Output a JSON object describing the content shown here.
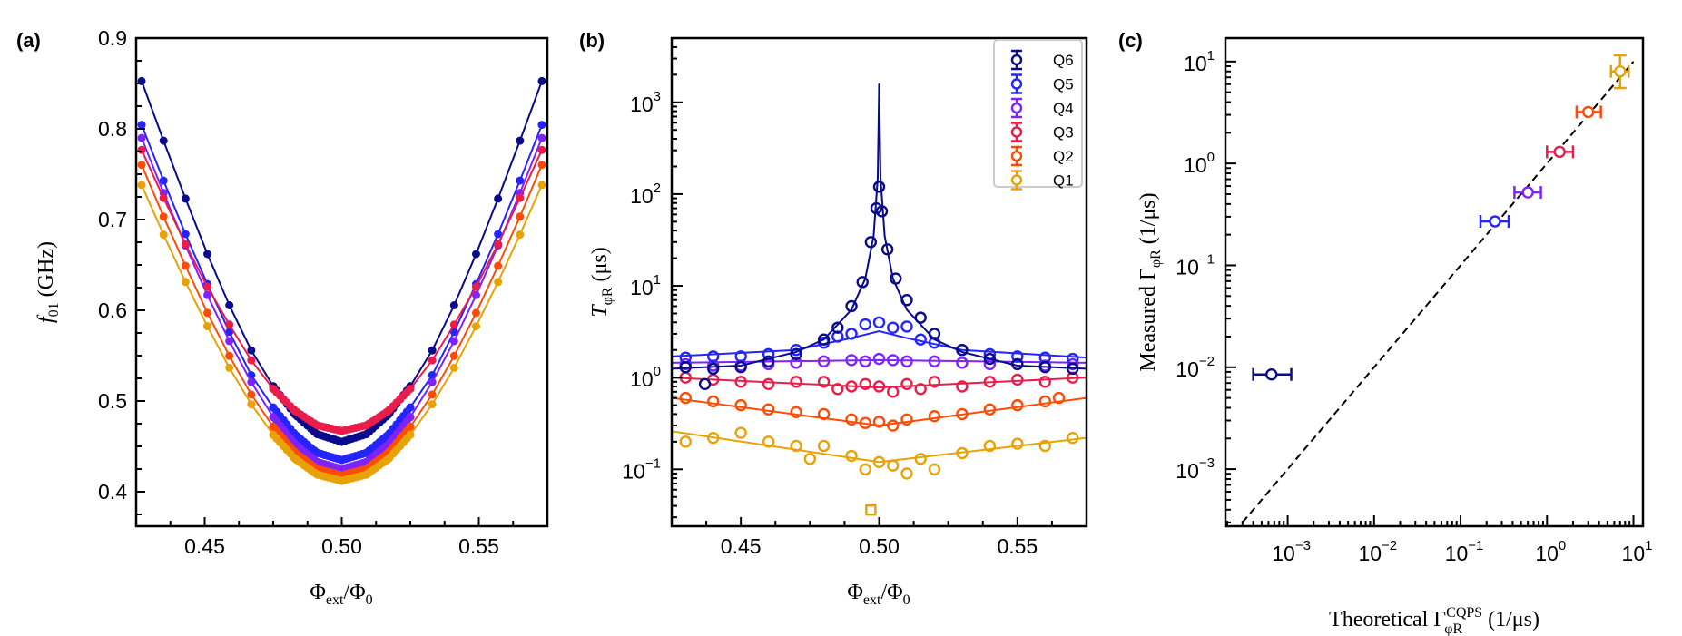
{
  "chart_data": [
    {
      "panel_label": "(a)",
      "type": "scatter",
      "marker": "filled-circle-with-fit-line",
      "xlabel": {
        "main": "Φ",
        "sub": "ext",
        "rest": "/Φ",
        "sub2": "0"
      },
      "ylabel": {
        "main": "f",
        "sub": "01",
        "rest": " (GHz)"
      },
      "xlim": [
        0.425,
        0.575
      ],
      "ylim": [
        0.362,
        0.9
      ],
      "xticks": [
        "0.45",
        "0.50",
        "0.55"
      ],
      "yticks": [
        "0.4",
        "0.5",
        "0.6",
        "0.7",
        "0.8",
        "0.9"
      ],
      "x": [
        0.427,
        0.435,
        0.443,
        0.451,
        0.459,
        0.467,
        0.475,
        0.483,
        0.491,
        0.5,
        0.509,
        0.517,
        0.525,
        0.533,
        0.541,
        0.549,
        0.557,
        0.565,
        0.573
      ],
      "series": [
        {
          "name": "Q6",
          "values": [
            0.8526,
            0.7869,
            0.7231,
            0.662,
            0.6055,
            0.5558,
            0.5163,
            0.485,
            0.4635,
            0.455,
            0.4635,
            0.485,
            0.5163,
            0.5558,
            0.6055,
            0.662,
            0.7231,
            0.7869,
            0.8526
          ]
        },
        {
          "name": "Q5",
          "values": [
            0.8044,
            0.7429,
            0.684,
            0.6289,
            0.5762,
            0.5285,
            0.4929,
            0.463,
            0.4429,
            0.435,
            0.4429,
            0.463,
            0.4929,
            0.5285,
            0.5762,
            0.6289,
            0.684,
            0.7429,
            0.8044
          ]
        },
        {
          "name": "Q4",
          "values": [
            0.7899,
            0.7294,
            0.6714,
            0.6167,
            0.566,
            0.5208,
            0.4823,
            0.4523,
            0.4328,
            0.425,
            0.4328,
            0.4523,
            0.4823,
            0.5208,
            0.566,
            0.6167,
            0.6714,
            0.7294,
            0.7899
          ]
        },
        {
          "name": "Q3",
          "values": [
            0.7767,
            0.7238,
            0.6729,
            0.6258,
            0.5842,
            0.5449,
            0.5134,
            0.4891,
            0.4732,
            0.467,
            0.4732,
            0.4891,
            0.5134,
            0.5449,
            0.5842,
            0.6258,
            0.6729,
            0.7238,
            0.7767
          ]
        },
        {
          "name": "Q2",
          "values": [
            0.7603,
            0.7032,
            0.649,
            0.5971,
            0.5497,
            0.5071,
            0.4716,
            0.443,
            0.4252,
            0.418,
            0.4252,
            0.443,
            0.4716,
            0.5071,
            0.5497,
            0.5971,
            0.649,
            0.7032,
            0.7603
          ]
        },
        {
          "name": "Q1",
          "values": [
            0.7381,
            0.6834,
            0.6312,
            0.5824,
            0.5366,
            0.4964,
            0.4627,
            0.4362,
            0.4189,
            0.412,
            0.4189,
            0.4362,
            0.4627,
            0.4964,
            0.5366,
            0.5824,
            0.6312,
            0.6834,
            0.7381
          ]
        }
      ]
    },
    {
      "panel_label": "(b)",
      "type": "scatter",
      "marker": "open-circle-with-fit-line",
      "yscale": "log",
      "xlabel": {
        "main": "Φ",
        "sub": "ext",
        "rest": "/Φ",
        "sub2": "0"
      },
      "ylabel": {
        "main": "T",
        "sub": "φR",
        "rest": " (μs)"
      },
      "xlim": [
        0.425,
        0.575
      ],
      "ylim_log10": [
        -1.62,
        3.7
      ],
      "xticks": [
        "0.45",
        "0.50",
        "0.55"
      ],
      "yticks_exp": [
        "-1",
        "0",
        "1",
        "2",
        "3"
      ],
      "legend": {
        "placement": "top-right",
        "entries": [
          "Q6",
          "Q5",
          "Q4",
          "Q3",
          "Q2",
          "Q1"
        ]
      },
      "series": [
        {
          "name": "Q6",
          "points": [
            [
              0.43,
              1.3
            ],
            [
              0.437,
              0.85
            ],
            [
              0.44,
              1.25
            ],
            [
              0.45,
              1.3
            ],
            [
              0.46,
              1.5
            ],
            [
              0.47,
              1.8
            ],
            [
              0.48,
              2.6
            ],
            [
              0.485,
              3.5
            ],
            [
              0.49,
              6
            ],
            [
              0.494,
              11
            ],
            [
              0.497,
              30
            ],
            [
              0.499,
              70
            ],
            [
              0.5,
              120
            ],
            [
              0.501,
              65
            ],
            [
              0.503,
              25
            ],
            [
              0.506,
              12
            ],
            [
              0.51,
              7
            ],
            [
              0.515,
              4.5
            ],
            [
              0.52,
              3
            ],
            [
              0.53,
              2
            ],
            [
              0.54,
              1.6
            ],
            [
              0.55,
              1.4
            ],
            [
              0.56,
              1.3
            ],
            [
              0.57,
              1.25
            ]
          ],
          "fit": [
            [
              0.425,
              1.25
            ],
            [
              0.45,
              1.35
            ],
            [
              0.47,
              1.9
            ],
            [
              0.48,
              2.6
            ],
            [
              0.49,
              5.5
            ],
            [
              0.495,
              12
            ],
            [
              0.498,
              35
            ],
            [
              0.4995,
              150
            ],
            [
              0.5,
              1600
            ],
            [
              0.5005,
              150
            ],
            [
              0.502,
              35
            ],
            [
              0.505,
              12
            ],
            [
              0.51,
              5.5
            ],
            [
              0.52,
              2.6
            ],
            [
              0.53,
              1.9
            ],
            [
              0.55,
              1.35
            ],
            [
              0.575,
              1.25
            ]
          ]
        },
        {
          "name": "Q5",
          "points": [
            [
              0.43,
              1.65
            ],
            [
              0.44,
              1.7
            ],
            [
              0.45,
              1.7
            ],
            [
              0.46,
              1.8
            ],
            [
              0.47,
              2.0
            ],
            [
              0.48,
              2.4
            ],
            [
              0.485,
              2.8
            ],
            [
              0.49,
              3.0
            ],
            [
              0.495,
              3.8
            ],
            [
              0.5,
              4.0
            ],
            [
              0.505,
              3.5
            ],
            [
              0.51,
              3.6
            ],
            [
              0.515,
              2.6
            ],
            [
              0.52,
              2.4
            ],
            [
              0.53,
              2.0
            ],
            [
              0.54,
              1.8
            ],
            [
              0.55,
              1.7
            ],
            [
              0.56,
              1.65
            ],
            [
              0.57,
              1.6
            ]
          ],
          "fit": [
            [
              0.425,
              1.7
            ],
            [
              0.47,
              2.0
            ],
            [
              0.49,
              2.7
            ],
            [
              0.5,
              3.2
            ],
            [
              0.51,
              2.7
            ],
            [
              0.53,
              2.0
            ],
            [
              0.575,
              1.65
            ]
          ]
        },
        {
          "name": "Q4",
          "points": [
            [
              0.43,
              1.4
            ],
            [
              0.44,
              1.35
            ],
            [
              0.45,
              1.35
            ],
            [
              0.46,
              1.4
            ],
            [
              0.47,
              1.45
            ],
            [
              0.48,
              1.5
            ],
            [
              0.49,
              1.55
            ],
            [
              0.495,
              1.5
            ],
            [
              0.5,
              1.6
            ],
            [
              0.505,
              1.55
            ],
            [
              0.51,
              1.5
            ],
            [
              0.52,
              1.5
            ],
            [
              0.53,
              1.45
            ],
            [
              0.54,
              1.4
            ],
            [
              0.55,
              1.4
            ],
            [
              0.56,
              1.35
            ],
            [
              0.57,
              1.4
            ]
          ],
          "fit": [
            [
              0.425,
              1.45
            ],
            [
              0.5,
              1.55
            ],
            [
              0.575,
              1.45
            ]
          ]
        },
        {
          "name": "Q3",
          "points": [
            [
              0.43,
              1.0
            ],
            [
              0.44,
              0.95
            ],
            [
              0.45,
              0.9
            ],
            [
              0.46,
              0.85
            ],
            [
              0.47,
              0.9
            ],
            [
              0.48,
              0.9
            ],
            [
              0.485,
              0.75
            ],
            [
              0.49,
              0.8
            ],
            [
              0.495,
              0.85
            ],
            [
              0.5,
              0.8
            ],
            [
              0.505,
              0.7
            ],
            [
              0.51,
              0.85
            ],
            [
              0.515,
              0.75
            ],
            [
              0.52,
              0.9
            ],
            [
              0.53,
              0.8
            ],
            [
              0.54,
              0.9
            ],
            [
              0.55,
              0.95
            ],
            [
              0.56,
              0.9
            ],
            [
              0.57,
              1.0
            ]
          ],
          "fit": [
            [
              0.425,
              1.0
            ],
            [
              0.5,
              0.78
            ],
            [
              0.575,
              1.0
            ]
          ]
        },
        {
          "name": "Q2",
          "points": [
            [
              0.43,
              0.6
            ],
            [
              0.44,
              0.55
            ],
            [
              0.45,
              0.5
            ],
            [
              0.46,
              0.45
            ],
            [
              0.47,
              0.42
            ],
            [
              0.48,
              0.4
            ],
            [
              0.49,
              0.35
            ],
            [
              0.495,
              0.32
            ],
            [
              0.5,
              0.33
            ],
            [
              0.505,
              0.3
            ],
            [
              0.51,
              0.35
            ],
            [
              0.52,
              0.38
            ],
            [
              0.53,
              0.4
            ],
            [
              0.54,
              0.45
            ],
            [
              0.55,
              0.5
            ],
            [
              0.56,
              0.55
            ],
            [
              0.565,
              0.6
            ]
          ],
          "fit": [
            [
              0.425,
              0.6
            ],
            [
              0.5,
              0.3
            ],
            [
              0.575,
              0.6
            ]
          ]
        },
        {
          "name": "Q1",
          "points": [
            [
              0.43,
              0.2
            ],
            [
              0.44,
              0.22
            ],
            [
              0.45,
              0.25
            ],
            [
              0.46,
              0.2
            ],
            [
              0.47,
              0.18
            ],
            [
              0.475,
              0.13
            ],
            [
              0.48,
              0.18
            ],
            [
              0.49,
              0.14
            ],
            [
              0.495,
              0.1
            ],
            [
              0.5,
              0.12
            ],
            [
              0.505,
              0.11
            ],
            [
              0.51,
              0.09
            ],
            [
              0.515,
              0.13
            ],
            [
              0.52,
              0.1
            ],
            [
              0.53,
              0.15
            ],
            [
              0.54,
              0.18
            ],
            [
              0.55,
              0.19
            ],
            [
              0.56,
              0.18
            ],
            [
              0.57,
              0.22
            ]
          ],
          "outlier": [
            0.497,
            0.036
          ],
          "fit": [
            [
              0.425,
              0.26
            ],
            [
              0.5,
              0.12
            ],
            [
              0.575,
              0.22
            ]
          ]
        }
      ]
    },
    {
      "panel_label": "(c)",
      "type": "scatter",
      "marker": "open-circle-with-error-bars",
      "xscale": "log",
      "yscale": "log",
      "xlabel": {
        "main": "Theoretical  Γ",
        "sub": "φR",
        "sup": "CQPS",
        "rest": " (1/μs)"
      },
      "ylabel": {
        "main": "Measured  Γ",
        "sub": "φR",
        "rest": " (1/μs)"
      },
      "xlim_log10": [
        -3.72,
        1.11
      ],
      "ylim_log10": [
        -3.56,
        1.23
      ],
      "xticks_exp": [
        "-3",
        "-2",
        "-1",
        "0",
        "1"
      ],
      "yticks_exp": [
        "-3",
        "-2",
        "-1",
        "0",
        "1"
      ],
      "reference_line": {
        "style": "dashed",
        "from": [
          0.0003,
          0.0003
        ],
        "to": [
          10,
          10
        ]
      },
      "series": [
        {
          "name": "Q6",
          "x": 0.00065,
          "y": 0.0085,
          "xerr": [
            0.0004,
            0.0011
          ]
        },
        {
          "name": "Q5",
          "x": 0.25,
          "y": 0.27,
          "xerr": [
            0.17,
            0.36
          ]
        },
        {
          "name": "Q4",
          "x": 0.6,
          "y": 0.52,
          "xerr": [
            0.42,
            0.85
          ]
        },
        {
          "name": "Q3",
          "x": 1.4,
          "y": 1.3,
          "xerr": [
            1.0,
            2.0
          ]
        },
        {
          "name": "Q2",
          "x": 3.0,
          "y": 3.2,
          "xerr": [
            2.2,
            4.2
          ]
        },
        {
          "name": "Q1",
          "x": 7.0,
          "y": 8.0,
          "xerr": [
            5.5,
            8.8
          ],
          "yerr": [
            5.5,
            11.5
          ]
        }
      ]
    }
  ],
  "colors": {
    "Q6": "#0a0a8c",
    "Q5": "#2424ff",
    "Q4": "#7e22ff",
    "Q3": "#ea1c4a",
    "Q2": "#ff4c05",
    "Q1": "#e9a203",
    "axis": "#000000",
    "legend_frame": "#cccccc"
  }
}
